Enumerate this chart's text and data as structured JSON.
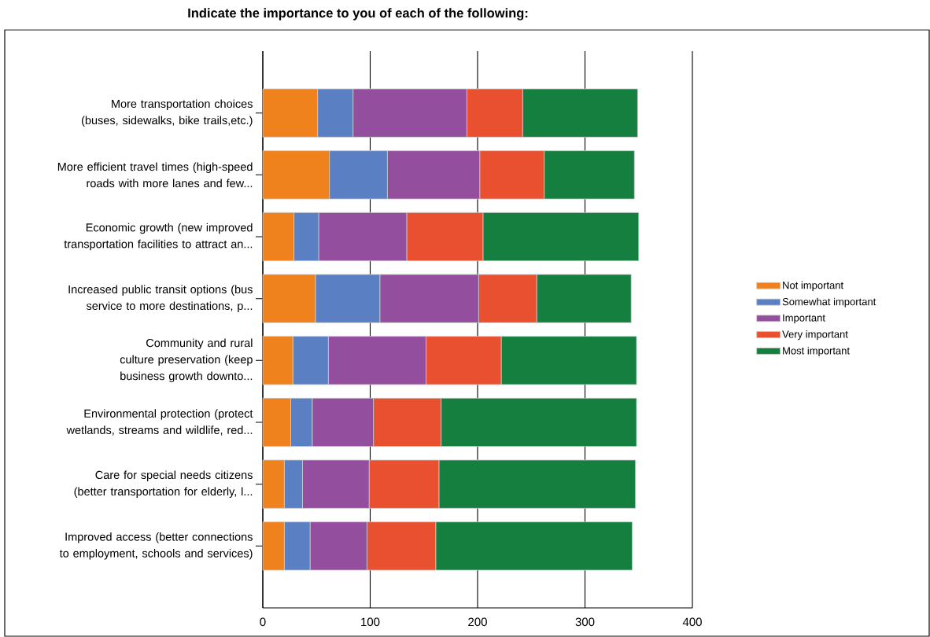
{
  "chart_data": {
    "type": "bar",
    "orientation": "horizontal",
    "stacked": true,
    "title": "Indicate the importance to you of each of the following:",
    "categories": [
      "More transportation choices (buses, sidewalks, bike trails,etc.)",
      "More efficient travel times (high-speed roads with more lanes and few...",
      "Economic growth (new improved transportation facilities to attract an...",
      "Increased public transit options (bus service to more destinations, p...",
      "Community and rural culture preservation (keep business growth downto...",
      "Environmental protection (protect wetlands, streams and wildlife, red...",
      "Care for special needs citizens (better transportation for elderly, l...",
      "Improved access (better connections to employment, schools and services)"
    ],
    "series": [
      {
        "name": "Not important",
        "color": "#f0821e",
        "values": [
          51,
          62,
          29,
          49,
          28,
          26,
          20,
          20
        ]
      },
      {
        "name": "Somewhat important",
        "color": "#5a7fc2",
        "values": [
          33,
          54,
          23,
          60,
          33,
          20,
          17,
          24
        ]
      },
      {
        "name": "Important",
        "color": "#944e9e",
        "values": [
          106,
          86,
          82,
          92,
          91,
          57,
          62,
          53
        ]
      },
      {
        "name": "Very important",
        "color": "#e9502f",
        "values": [
          52,
          60,
          71,
          54,
          70,
          63,
          65,
          64
        ]
      },
      {
        "name": "Most important",
        "color": "#157f3f",
        "values": [
          107,
          84,
          145,
          88,
          126,
          182,
          183,
          183
        ]
      }
    ],
    "xlim": [
      0,
      400
    ],
    "xticks": [
      0,
      100,
      200,
      300,
      400
    ],
    "grid": "x",
    "legend": "right"
  }
}
